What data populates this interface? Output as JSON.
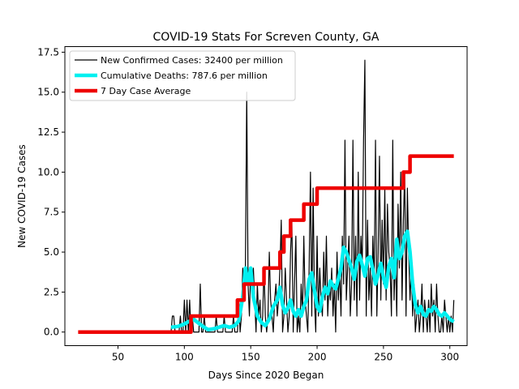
{
  "chart_data": {
    "type": "line",
    "title": "COVID-19 Stats For Screven County, GA",
    "xlabel": "Days Since 2020 Began",
    "ylabel": "New COVID-19 Cases",
    "xlim": [
      10,
      313
    ],
    "ylim": [
      -0.85,
      17.85
    ],
    "xticks": [
      50,
      100,
      150,
      200,
      250,
      300
    ],
    "yticks": [
      0.0,
      2.5,
      5.0,
      7.5,
      10.0,
      12.5,
      15.0,
      17.5
    ],
    "ytick_labels": [
      "0.0",
      "2.5",
      "5.0",
      "7.5",
      "10.0",
      "12.5",
      "15.0",
      "17.5"
    ],
    "grid": false,
    "legend_position": "top-left",
    "series": [
      {
        "name": "New Confirmed Cases: 32400 per million",
        "color": "#000000",
        "points": [
          [
            90,
            0
          ],
          [
            91,
            1
          ],
          [
            92,
            1
          ],
          [
            93,
            0
          ],
          [
            94,
            0
          ],
          [
            95,
            0
          ],
          [
            96,
            0
          ],
          [
            97,
            1
          ],
          [
            98,
            0
          ],
          [
            99,
            0
          ],
          [
            100,
            2
          ],
          [
            101,
            0
          ],
          [
            102,
            2
          ],
          [
            103,
            0
          ],
          [
            104,
            2
          ],
          [
            105,
            0
          ],
          [
            106,
            1
          ],
          [
            107,
            0
          ],
          [
            108,
            0
          ],
          [
            109,
            0
          ],
          [
            110,
            0
          ],
          [
            111,
            0
          ],
          [
            112,
            3
          ],
          [
            113,
            0
          ],
          [
            114,
            0
          ],
          [
            115,
            1
          ],
          [
            116,
            0
          ],
          [
            117,
            0
          ],
          [
            118,
            0
          ],
          [
            119,
            0
          ],
          [
            120,
            0
          ],
          [
            121,
            0
          ],
          [
            122,
            0
          ],
          [
            123,
            0
          ],
          [
            124,
            1
          ],
          [
            125,
            0
          ],
          [
            126,
            0
          ],
          [
            127,
            0
          ],
          [
            128,
            0
          ],
          [
            129,
            0
          ],
          [
            130,
            1
          ],
          [
            131,
            0
          ],
          [
            132,
            0
          ],
          [
            133,
            0
          ],
          [
            134,
            0
          ],
          [
            135,
            0
          ],
          [
            136,
            0
          ],
          [
            137,
            1
          ],
          [
            138,
            0
          ],
          [
            139,
            0
          ],
          [
            140,
            0
          ],
          [
            141,
            2
          ],
          [
            142,
            0
          ],
          [
            143,
            1
          ],
          [
            144,
            4
          ],
          [
            145,
            2
          ],
          [
            146,
            4
          ],
          [
            147,
            15
          ],
          [
            148,
            3
          ],
          [
            149,
            1
          ],
          [
            150,
            4
          ],
          [
            151,
            3
          ],
          [
            152,
            4
          ],
          [
            153,
            2
          ],
          [
            154,
            0
          ],
          [
            155,
            3
          ],
          [
            156,
            1
          ],
          [
            157,
            2
          ],
          [
            158,
            0
          ],
          [
            159,
            1
          ],
          [
            160,
            4
          ],
          [
            161,
            1
          ],
          [
            162,
            0
          ],
          [
            163,
            1
          ],
          [
            164,
            5
          ],
          [
            165,
            2
          ],
          [
            166,
            1
          ],
          [
            167,
            0
          ],
          [
            168,
            2
          ],
          [
            169,
            3
          ],
          [
            170,
            1
          ],
          [
            171,
            2
          ],
          [
            172,
            4
          ],
          [
            173,
            7
          ],
          [
            174,
            0
          ],
          [
            175,
            1
          ],
          [
            176,
            4
          ],
          [
            177,
            2
          ],
          [
            178,
            0
          ],
          [
            179,
            1
          ],
          [
            180,
            5
          ],
          [
            181,
            7
          ],
          [
            182,
            0
          ],
          [
            183,
            3
          ],
          [
            184,
            6
          ],
          [
            185,
            0
          ],
          [
            186,
            1
          ],
          [
            187,
            0
          ],
          [
            188,
            3
          ],
          [
            189,
            1
          ],
          [
            190,
            6
          ],
          [
            191,
            2
          ],
          [
            192,
            1
          ],
          [
            193,
            0
          ],
          [
            194,
            4
          ],
          [
            195,
            10
          ],
          [
            196,
            1
          ],
          [
            197,
            9
          ],
          [
            198,
            2
          ],
          [
            199,
            0
          ],
          [
            200,
            6
          ],
          [
            201,
            1
          ],
          [
            202,
            4
          ],
          [
            203,
            2
          ],
          [
            204,
            1
          ],
          [
            205,
            5
          ],
          [
            206,
            2
          ],
          [
            207,
            6
          ],
          [
            208,
            1
          ],
          [
            209,
            3
          ],
          [
            210,
            2
          ],
          [
            211,
            4
          ],
          [
            212,
            1
          ],
          [
            213,
            3
          ],
          [
            214,
            0
          ],
          [
            215,
            5
          ],
          [
            216,
            2
          ],
          [
            217,
            4
          ],
          [
            218,
            1
          ],
          [
            219,
            6
          ],
          [
            220,
            3
          ],
          [
            221,
            12
          ],
          [
            222,
            2
          ],
          [
            223,
            4
          ],
          [
            224,
            6
          ],
          [
            225,
            1
          ],
          [
            226,
            3
          ],
          [
            227,
            12
          ],
          [
            228,
            2
          ],
          [
            229,
            6
          ],
          [
            230,
            1
          ],
          [
            231,
            10
          ],
          [
            232,
            2
          ],
          [
            233,
            6
          ],
          [
            234,
            4
          ],
          [
            235,
            12
          ],
          [
            236,
            17
          ],
          [
            237,
            1
          ],
          [
            238,
            7
          ],
          [
            239,
            2
          ],
          [
            240,
            4
          ],
          [
            241,
            1
          ],
          [
            242,
            6
          ],
          [
            243,
            3
          ],
          [
            244,
            12
          ],
          [
            245,
            1
          ],
          [
            246,
            5
          ],
          [
            247,
            11
          ],
          [
            248,
            2
          ],
          [
            249,
            7
          ],
          [
            250,
            3
          ],
          [
            251,
            9
          ],
          [
            252,
            2
          ],
          [
            253,
            8
          ],
          [
            254,
            5
          ],
          [
            255,
            4
          ],
          [
            256,
            1
          ],
          [
            257,
            12
          ],
          [
            258,
            2
          ],
          [
            259,
            5
          ],
          [
            260,
            1
          ],
          [
            261,
            8
          ],
          [
            262,
            4
          ],
          [
            263,
            10
          ],
          [
            264,
            2
          ],
          [
            265,
            7
          ],
          [
            266,
            10
          ],
          [
            267,
            1
          ],
          [
            268,
            9
          ],
          [
            269,
            5
          ],
          [
            270,
            2
          ],
          [
            271,
            4
          ],
          [
            272,
            1
          ],
          [
            273,
            3
          ],
          [
            274,
            0
          ],
          [
            275,
            1
          ],
          [
            276,
            2
          ],
          [
            277,
            0
          ],
          [
            278,
            1
          ],
          [
            279,
            3
          ],
          [
            280,
            0
          ],
          [
            281,
            2
          ],
          [
            282,
            1
          ],
          [
            283,
            0
          ],
          [
            284,
            2
          ],
          [
            285,
            0
          ],
          [
            286,
            3
          ],
          [
            287,
            1
          ],
          [
            288,
            2
          ],
          [
            289,
            0
          ],
          [
            290,
            3
          ],
          [
            291,
            1
          ],
          [
            292,
            0
          ],
          [
            293,
            0
          ],
          [
            294,
            1
          ],
          [
            295,
            0
          ],
          [
            296,
            2
          ],
          [
            297,
            1
          ],
          [
            298,
            0
          ],
          [
            299,
            1
          ],
          [
            300,
            0
          ],
          [
            301,
            1
          ],
          [
            302,
            0
          ],
          [
            303,
            2
          ]
        ]
      },
      {
        "name": "Cumulative Deaths: 787.6 per million",
        "color": "#00f0f0",
        "points": [
          [
            90,
            0.3
          ],
          [
            95,
            0.35
          ],
          [
            100,
            0.5
          ],
          [
            103,
            0.65
          ],
          [
            107,
            0.8
          ],
          [
            110,
            0.6
          ],
          [
            114,
            0.35
          ],
          [
            118,
            0.15
          ],
          [
            122,
            0.2
          ],
          [
            126,
            0.3
          ],
          [
            130,
            0.4
          ],
          [
            134,
            0.3
          ],
          [
            138,
            0.4
          ],
          [
            141,
            0.7
          ],
          [
            144,
            2.2
          ],
          [
            146,
            4.0
          ],
          [
            148,
            3.0
          ],
          [
            150,
            4.0
          ],
          [
            152,
            2.2
          ],
          [
            155,
            1.0
          ],
          [
            158,
            0.6
          ],
          [
            161,
            0.4
          ],
          [
            164,
            0.8
          ],
          [
            167,
            1.6
          ],
          [
            170,
            2.0
          ],
          [
            172,
            2.8
          ],
          [
            174,
            1.7
          ],
          [
            176,
            1.2
          ],
          [
            178,
            1.5
          ],
          [
            180,
            2.0
          ],
          [
            182,
            1.3
          ],
          [
            184,
            1.0
          ],
          [
            186,
            1.4
          ],
          [
            188,
            1.0
          ],
          [
            190,
            1.6
          ],
          [
            192,
            2.0
          ],
          [
            194,
            3.3
          ],
          [
            196,
            3.7
          ],
          [
            198,
            2.6
          ],
          [
            200,
            1.6
          ],
          [
            202,
            1.3
          ],
          [
            204,
            2.2
          ],
          [
            206,
            2.8
          ],
          [
            208,
            2.4
          ],
          [
            210,
            3.2
          ],
          [
            212,
            2.9
          ],
          [
            214,
            2.7
          ],
          [
            216,
            3.3
          ],
          [
            218,
            4.0
          ],
          [
            220,
            5.3
          ],
          [
            222,
            5.0
          ],
          [
            224,
            4.5
          ],
          [
            226,
            4.0
          ],
          [
            228,
            3.3
          ],
          [
            230,
            4.4
          ],
          [
            232,
            4.8
          ],
          [
            234,
            4.2
          ],
          [
            236,
            3.5
          ],
          [
            238,
            4.6
          ],
          [
            240,
            4.7
          ],
          [
            242,
            3.9
          ],
          [
            244,
            3.0
          ],
          [
            246,
            3.6
          ],
          [
            248,
            4.3
          ],
          [
            250,
            3.4
          ],
          [
            252,
            2.8
          ],
          [
            254,
            4.1
          ],
          [
            256,
            4.6
          ],
          [
            258,
            3.4
          ],
          [
            260,
            5.8
          ],
          [
            262,
            4.6
          ],
          [
            264,
            5.0
          ],
          [
            266,
            6.0
          ],
          [
            268,
            6.3
          ],
          [
            270,
            5.0
          ],
          [
            272,
            3.0
          ],
          [
            274,
            1.7
          ],
          [
            276,
            1.2
          ],
          [
            278,
            1.6
          ],
          [
            280,
            1.1
          ],
          [
            282,
            1.0
          ],
          [
            284,
            1.4
          ],
          [
            286,
            1.3
          ],
          [
            288,
            1.6
          ],
          [
            290,
            1.4
          ],
          [
            292,
            1.1
          ],
          [
            294,
            1.0
          ],
          [
            296,
            1.2
          ],
          [
            298,
            1.0
          ],
          [
            300,
            0.8
          ],
          [
            303,
            0.65
          ]
        ]
      },
      {
        "name": "7 Day Case Average",
        "color": "#ee0000",
        "points": [
          [
            20,
            0
          ],
          [
            105,
            0
          ],
          [
            105,
            1
          ],
          [
            140,
            1
          ],
          [
            140,
            2
          ],
          [
            145,
            2
          ],
          [
            145,
            3
          ],
          [
            155,
            3
          ],
          [
            160,
            3
          ],
          [
            160,
            4
          ],
          [
            172,
            4
          ],
          [
            172,
            5
          ],
          [
            175,
            5
          ],
          [
            175,
            6
          ],
          [
            180,
            6
          ],
          [
            180,
            7
          ],
          [
            190,
            7
          ],
          [
            190,
            8
          ],
          [
            200,
            8
          ],
          [
            200,
            9
          ],
          [
            205,
            9
          ],
          [
            265,
            9
          ],
          [
            265,
            10
          ],
          [
            270,
            10
          ],
          [
            270,
            11
          ],
          [
            303,
            11
          ]
        ]
      }
    ]
  }
}
